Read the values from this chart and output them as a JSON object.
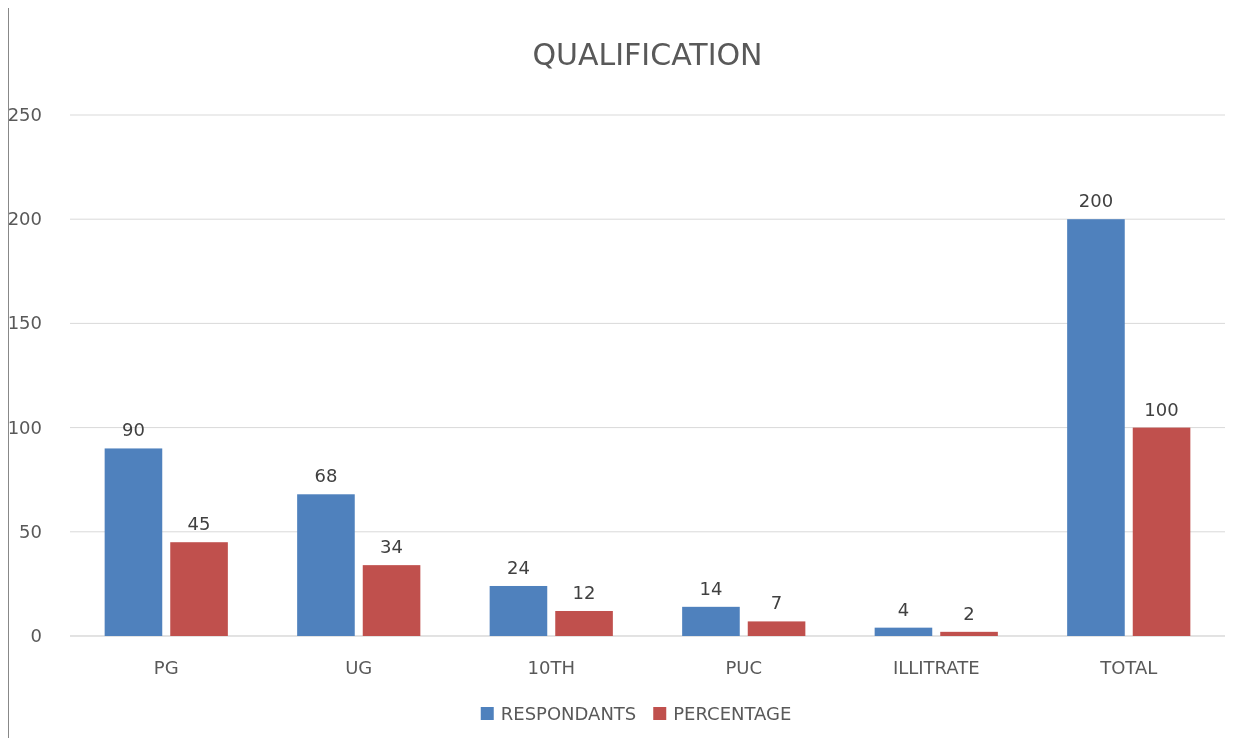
{
  "chart_data": {
    "type": "bar",
    "title": "QUALIFICATION",
    "categories": [
      "PG",
      "UG",
      "10TH",
      "PUC",
      "ILLITRATE",
      "TOTAL"
    ],
    "series": [
      {
        "name": "RESPONDANTS",
        "color": "#4f81bd",
        "values": [
          90,
          68,
          24,
          14,
          4,
          200
        ]
      },
      {
        "name": "PERCENTAGE",
        "color": "#c0504d",
        "values": [
          45,
          34,
          12,
          7,
          2,
          100
        ]
      }
    ],
    "ylim": [
      0,
      250
    ],
    "yticks": [
      0,
      50,
      100,
      150,
      200,
      250
    ],
    "grid": "y",
    "legend": "bottom",
    "data_labels": true
  }
}
